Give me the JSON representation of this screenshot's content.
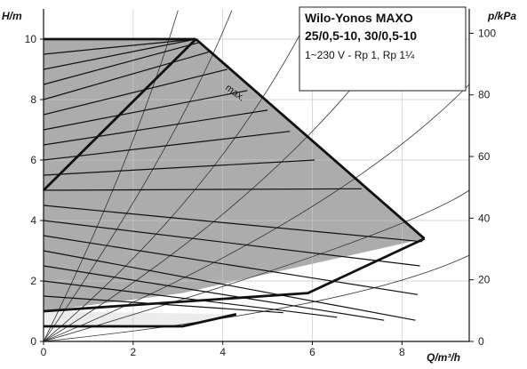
{
  "chart_data": {
    "type": "line",
    "title_lines": [
      "Wilo-Yonos MAXO",
      "25/0,5-10, 30/0,5-10"
    ],
    "subtitle": "1~230 V - Rp 1, Rp 1¼",
    "ylabel_left": "H/m",
    "ylabel_right": "p/kPa",
    "xlabel": "Q/m³/h",
    "xlim": [
      0,
      9.5
    ],
    "ylim": [
      0,
      11
    ],
    "ylim_right_kpa": [
      0,
      107.9
    ],
    "x_ticks": [
      "0",
      "2",
      "4",
      "6",
      "8"
    ],
    "y_ticks": [
      "0",
      "2",
      "4",
      "6",
      "8",
      "10"
    ],
    "y_right_ticks": [
      "0",
      "20",
      "40",
      "60",
      "80",
      "100"
    ],
    "annotation": "max.",
    "colors": {
      "envelope_fill": "#acacac",
      "light_fill": "#dedede",
      "inner_fill": "#ececec",
      "outline": "#111111",
      "system_curve": "#333333"
    },
    "series": [
      {
        "name": "max.",
        "x": [
          0,
          3.4,
          8.5,
          3.1,
          0
        ],
        "y": [
          10,
          10,
          3.4,
          1.6,
          1.0
        ]
      },
      {
        "x": [
          0,
          3.4
        ],
        "y": [
          10,
          10
        ]
      },
      {
        "x": [
          0,
          3.4
        ],
        "y": [
          5,
          10
        ]
      },
      {
        "x": [
          0,
          5.9,
          8.5
        ],
        "y": [
          1.0,
          1.6,
          3.4
        ]
      },
      {
        "x": [
          0,
          3.1,
          4.3
        ],
        "y": [
          0.5,
          0.5,
          0.9
        ]
      },
      {
        "x": [
          0,
          5.35
        ],
        "y": [
          1.5,
          0.95
        ]
      },
      {
        "x": [
          0,
          6.55
        ],
        "y": [
          2.0,
          0.8
        ]
      },
      {
        "x": [
          0,
          7.6
        ],
        "y": [
          2.5,
          0.7
        ]
      },
      {
        "x": [
          0,
          8.3
        ],
        "y": [
          3.0,
          0.7
        ]
      },
      {
        "x": [
          0,
          8.35
        ],
        "y": [
          3.5,
          1.55
        ]
      },
      {
        "x": [
          0,
          8.4
        ],
        "y": [
          4.0,
          2.5
        ]
      },
      {
        "x": [
          0,
          8.45
        ],
        "y": [
          4.5,
          3.3
        ]
      },
      {
        "x": [
          0,
          7.1
        ],
        "y": [
          5.0,
          5.05
        ]
      },
      {
        "x": [
          0,
          6.05
        ],
        "y": [
          5.5,
          6.0
        ]
      },
      {
        "x": [
          0,
          5.5
        ],
        "y": [
          6.0,
          6.95
        ]
      },
      {
        "x": [
          0,
          5.0
        ],
        "y": [
          6.5,
          7.65
        ]
      },
      {
        "x": [
          0,
          4.55
        ],
        "y": [
          7.0,
          8.3
        ]
      },
      {
        "x": [
          0,
          4.1
        ],
        "y": [
          7.5,
          9.0
        ]
      },
      {
        "x": [
          0,
          3.75
        ],
        "y": [
          8.0,
          9.6
        ]
      },
      {
        "x": [
          0,
          3.5
        ],
        "y": [
          8.5,
          9.9
        ]
      },
      {
        "x": [
          0,
          3.4
        ],
        "y": [
          9.0,
          10.0
        ]
      },
      {
        "x": [
          0,
          3.4
        ],
        "y": [
          9.5,
          10.0
        ]
      },
      {
        "x": [
          0,
          2.0,
          3.0
        ],
        "y": [
          0,
          6.0,
          10.95
        ]
      },
      {
        "x": [
          0,
          3.0,
          4.2
        ],
        "y": [
          0,
          6.5,
          10.95
        ]
      },
      {
        "x": [
          0,
          4.0,
          6.0
        ],
        "y": [
          0,
          5.0,
          10.95
        ]
      },
      {
        "x": [
          0,
          5.5,
          8.2
        ],
        "y": [
          0,
          5.0,
          10.95
        ]
      },
      {
        "x": [
          0,
          6.5,
          9.5
        ],
        "y": [
          0,
          4.0,
          8.5
        ]
      },
      {
        "x": [
          0,
          8.0,
          9.5
        ],
        "y": [
          0,
          3.5,
          5.0
        ]
      },
      {
        "x": [
          0,
          7.0,
          9.5
        ],
        "y": [
          0,
          1.1,
          2.85
        ]
      }
    ]
  }
}
